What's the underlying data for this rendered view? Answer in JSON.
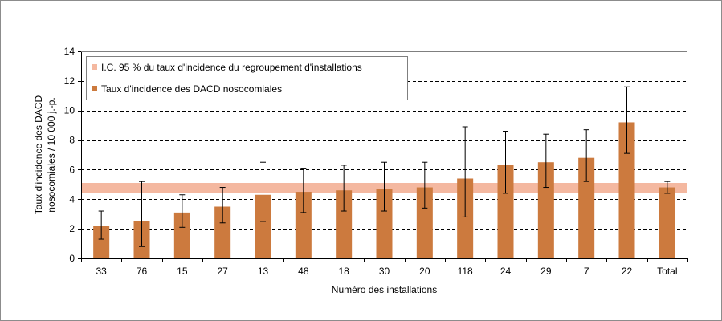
{
  "chart_data": {
    "type": "bar",
    "xlabel": "Numéro des installations",
    "ylabel_lines": [
      "Taux d'incidence des DACD",
      "nosocomiales / 10 000 j.-p."
    ],
    "ylim": [
      0,
      14
    ],
    "yticks": [
      0,
      2,
      4,
      6,
      8,
      10,
      12,
      14
    ],
    "grid": "horizontal-dashed",
    "legend_position": "top-left",
    "categories": [
      "33",
      "76",
      "15",
      "27",
      "13",
      "48",
      "18",
      "30",
      "20",
      "118",
      "24",
      "29",
      "7",
      "22",
      "Total"
    ],
    "series": [
      {
        "name": "Taux d'incidence des DACD nosocomiales",
        "color": "#cc7a3e",
        "values": [
          2.2,
          2.5,
          3.1,
          3.5,
          4.3,
          4.5,
          4.6,
          4.7,
          4.8,
          5.4,
          6.3,
          6.5,
          6.8,
          9.2,
          4.8
        ],
        "ci_low": [
          1.3,
          0.8,
          2.1,
          2.4,
          2.5,
          3.1,
          3.2,
          3.2,
          3.4,
          2.8,
          4.4,
          4.8,
          5.2,
          7.1,
          4.4
        ],
        "ci_high": [
          3.2,
          5.2,
          4.3,
          4.8,
          6.5,
          6.1,
          6.3,
          6.5,
          6.5,
          8.9,
          8.6,
          8.4,
          8.7,
          11.6,
          5.2
        ]
      }
    ],
    "band": {
      "name": "I.C. 95 % du taux d'incidence du regroupement d'installations",
      "color": "#f4b8a0",
      "low": 4.45,
      "high": 5.1
    }
  }
}
